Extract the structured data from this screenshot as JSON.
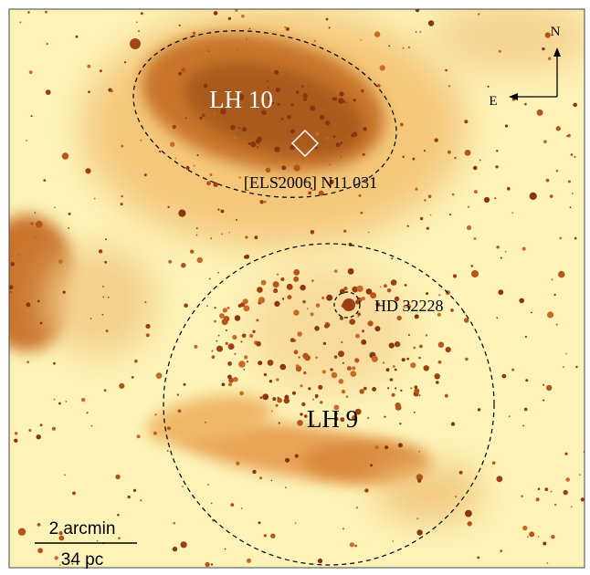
{
  "labels": {
    "lh10": "LH 10",
    "n11_star": "[ELS2006] N11 031",
    "hd_star": "HD 32228",
    "lh9": "LH 9"
  },
  "compass": {
    "north": "N",
    "east": "E"
  },
  "scale_bar": {
    "angular": "2 arcmin",
    "physical": "34 pc"
  }
}
